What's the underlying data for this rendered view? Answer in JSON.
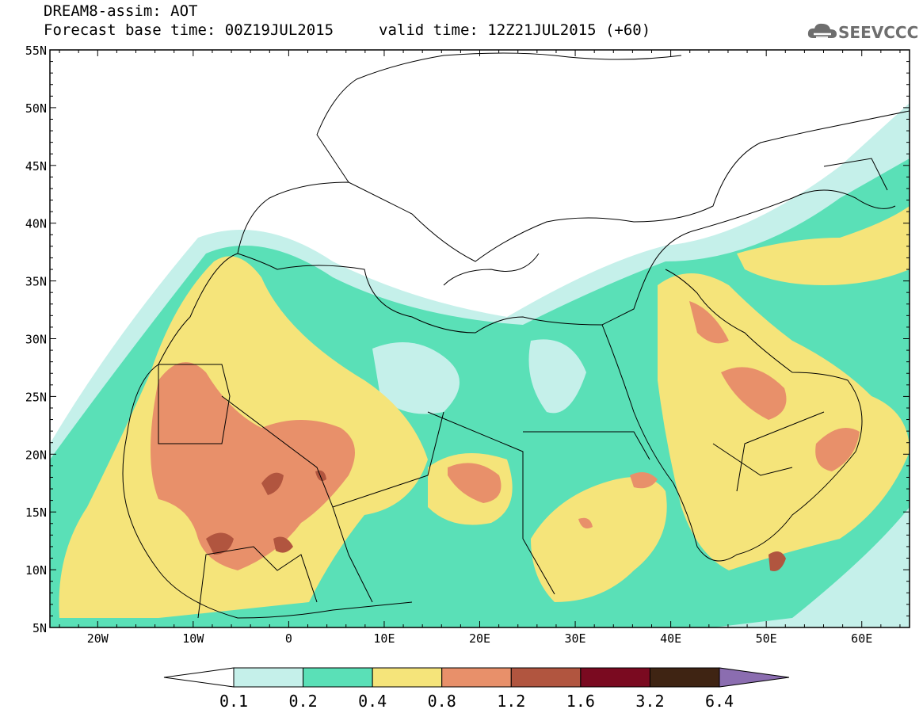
{
  "header": {
    "title": "DREAM8-assim: AOT",
    "base_time": "Forecast base time: 00Z19JUL2015",
    "valid_time": "valid time: 12Z21JUL2015 (+60)"
  },
  "logo": {
    "text": "SEEVCCC",
    "icon": "cloud-icon"
  },
  "map": {
    "lat_labels": [
      "55N",
      "50N",
      "45N",
      "40N",
      "35N",
      "30N",
      "25N",
      "20N",
      "15N",
      "10N",
      "5N"
    ],
    "lon_labels": [
      "20W",
      "10W",
      "0",
      "10E",
      "20E",
      "30E",
      "40E",
      "50E",
      "60E"
    ],
    "lon_range": [
      -25,
      65
    ],
    "lat_range": [
      5,
      55
    ]
  },
  "colorbar": {
    "labels": [
      "0.1",
      "0.2",
      "0.4",
      "0.8",
      "1.2",
      "1.6",
      "3.2",
      "6.4"
    ],
    "colors": [
      "#ffffff",
      "#c5f0ea",
      "#5ae0b7",
      "#f5e47a",
      "#e8906a",
      "#b1553f",
      "#7a0a20",
      "#3f2413",
      "#8b6db0"
    ]
  }
}
